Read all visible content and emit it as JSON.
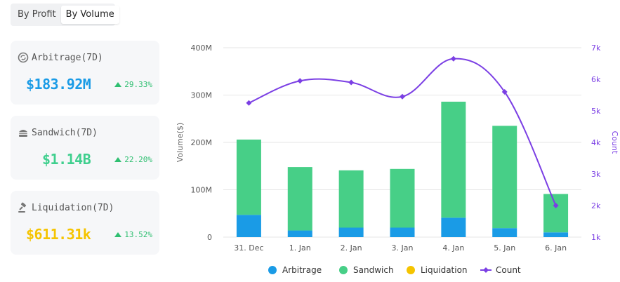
{
  "toggle": {
    "by_profit": "By Profit",
    "by_volume": "By Volume"
  },
  "cards": [
    {
      "title": "Arbitrage(7D)",
      "value": "$183.92M",
      "change": "29.33%",
      "value_color": "#1a9be6",
      "icon": "arbitrage-icon"
    },
    {
      "title": "Sandwich(7D)",
      "value": "$1.14B",
      "change": "22.20%",
      "value_color": "#3fcf8e",
      "icon": "sandwich-icon"
    },
    {
      "title": "Liquidation(7D)",
      "value": "$611.31k",
      "change": "13.52%",
      "value_color": "#f5c400",
      "icon": "gavel-icon"
    }
  ],
  "chart_data": {
    "type": "bar",
    "stacked": true,
    "categories": [
      "31. Dec",
      "1. Jan",
      "2. Jan",
      "3. Jan",
      "4. Jan",
      "5. Jan",
      "6. Jan"
    ],
    "series": [
      {
        "name": "Arbitrage",
        "color": "#1a9be6",
        "values": [
          47,
          14,
          20,
          20,
          41,
          19,
          10
        ]
      },
      {
        "name": "Sandwich",
        "color": "#47cf87",
        "values": [
          159,
          134,
          121,
          124,
          245,
          216,
          81
        ]
      },
      {
        "name": "Liquidation",
        "color": "#f5c400",
        "values": [
          0,
          0,
          0,
          0,
          0,
          0,
          0
        ]
      }
    ],
    "line": {
      "name": "Count",
      "color": "#7b3fe4",
      "values": [
        5.25,
        5.95,
        5.9,
        5.45,
        6.65,
        5.6,
        2.0
      ]
    },
    "ylabel": "Volume($)",
    "y2label": "Count",
    "ylim": [
      0,
      400
    ],
    "y2lim": [
      1,
      7
    ],
    "yticks": [
      "0",
      "100M",
      "200M",
      "300M",
      "400M"
    ],
    "y2ticks": [
      "1k",
      "2k",
      "3k",
      "4k",
      "5k",
      "6k",
      "7k"
    ],
    "legend": [
      "Arbitrage",
      "Sandwich",
      "Liquidation",
      "Count"
    ]
  }
}
